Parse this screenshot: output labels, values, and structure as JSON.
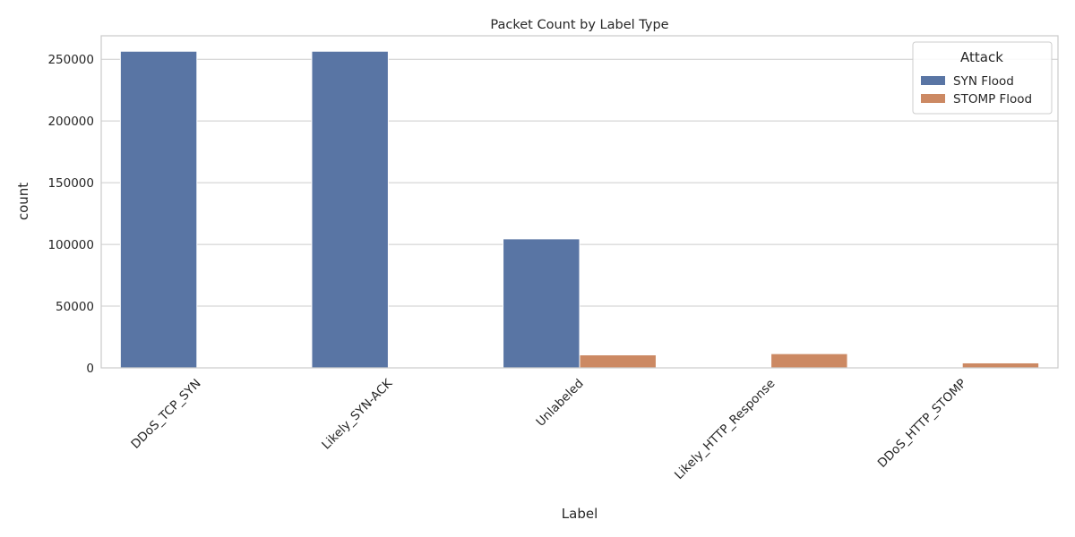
{
  "chart_data": {
    "type": "bar",
    "title": "Packet Count by Label Type",
    "xlabel": "Label",
    "ylabel": "count",
    "categories": [
      "DDoS_TCP_SYN",
      "Likely_SYN-ACK",
      "Unlabeled",
      "Likely_HTTP_Response",
      "DDoS_HTTP_STOMP"
    ],
    "series": [
      {
        "name": "SYN Flood",
        "values": [
          256500,
          256500,
          104500,
          0,
          0
        ]
      },
      {
        "name": "STOMP Flood",
        "values": [
          0,
          0,
          10500,
          11500,
          4000
        ]
      }
    ],
    "colors": [
      "#5975a4",
      "#cc8963"
    ],
    "ylim": [
      0,
      269000
    ],
    "yticks": [
      0,
      50000,
      100000,
      150000,
      200000,
      250000
    ],
    "grid": true,
    "legend": {
      "title": "Attack",
      "position": "top-right"
    }
  }
}
